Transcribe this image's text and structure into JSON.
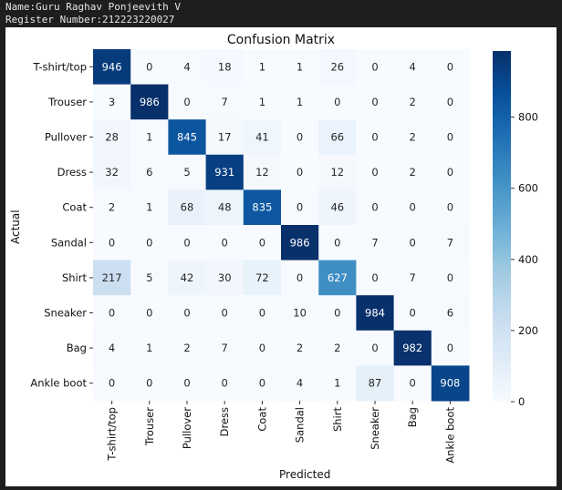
{
  "header": {
    "name_line": "Name:Guru Raghav Ponjeevith V",
    "register_line": "Register Number:212223220027"
  },
  "chart_data": {
    "type": "heatmap",
    "title": "Confusion Matrix",
    "xlabel": "Predicted",
    "ylabel": "Actual",
    "row_labels": [
      "T-shirt/top",
      "Trouser",
      "Pullover",
      "Dress",
      "Coat",
      "Sandal",
      "Shirt",
      "Sneaker",
      "Bag",
      "Ankle boot"
    ],
    "col_labels": [
      "T-shirt/top",
      "Trouser",
      "Pullover",
      "Dress",
      "Coat",
      "Sandal",
      "Shirt",
      "Sneaker",
      "Bag",
      "Ankle boot"
    ],
    "values": [
      [
        946,
        0,
        4,
        18,
        1,
        1,
        26,
        0,
        4,
        0
      ],
      [
        3,
        986,
        0,
        7,
        1,
        1,
        0,
        0,
        2,
        0
      ],
      [
        28,
        1,
        845,
        17,
        41,
        0,
        66,
        0,
        2,
        0
      ],
      [
        32,
        6,
        5,
        931,
        12,
        0,
        12,
        0,
        2,
        0
      ],
      [
        2,
        1,
        68,
        48,
        835,
        0,
        46,
        0,
        0,
        0
      ],
      [
        0,
        0,
        0,
        0,
        0,
        986,
        0,
        7,
        0,
        7
      ],
      [
        217,
        5,
        42,
        30,
        72,
        0,
        627,
        0,
        7,
        0
      ],
      [
        0,
        0,
        0,
        0,
        0,
        10,
        0,
        984,
        0,
        6
      ],
      [
        4,
        1,
        2,
        7,
        0,
        2,
        2,
        0,
        982,
        0
      ],
      [
        0,
        0,
        0,
        0,
        0,
        4,
        1,
        87,
        0,
        908
      ]
    ],
    "colorbar": {
      "range": [
        0,
        986
      ],
      "ticks": [
        0,
        200,
        400,
        600,
        800
      ],
      "low_color": "#f7fbff",
      "high_color": "#08306b",
      "colormap": "Blues"
    },
    "text_dark_color": "#262626",
    "text_light_color": "#ffffff"
  }
}
